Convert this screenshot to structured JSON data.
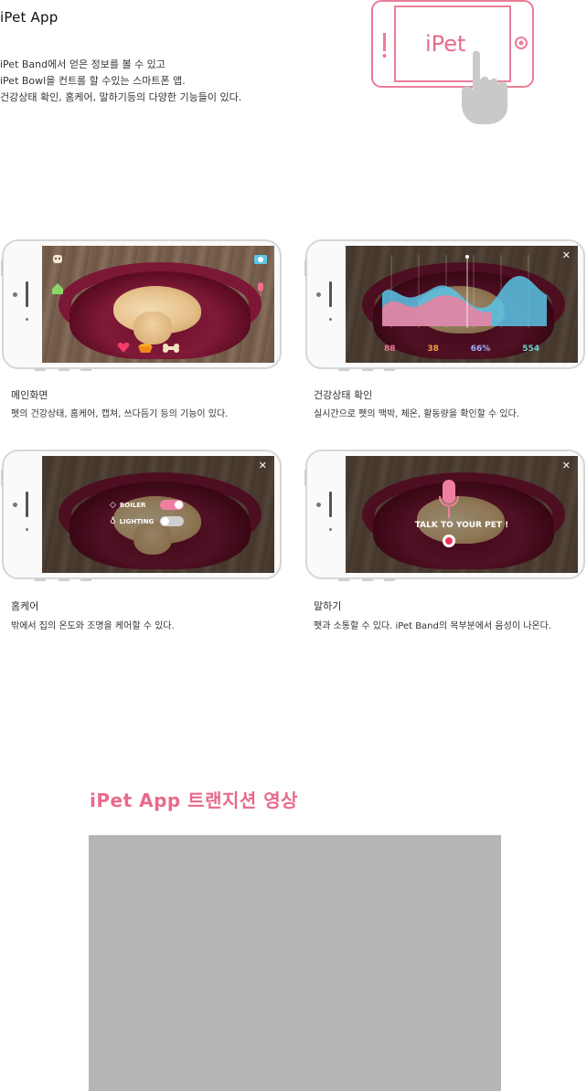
{
  "header": {
    "title": "iPet App",
    "intro_lines": [
      "iPet Band에서 얻은 정보를 볼 수 있고",
      "iPet Bowl을 컨트롤 할 수있는 스마트폰 앱.",
      "건강상태 확인, 홈케어, 말하기등의 다양한 기능들이 있다."
    ],
    "logo_text": "iPet"
  },
  "screens": [
    {
      "title": "메인화면",
      "desc": "펫의 건강상태, 홈케어, 캡쳐, 쓰다듬기 등의 기능이 있다."
    },
    {
      "title": "건강상태 확인",
      "desc": "실시간으로 펫의 맥박, 체온, 활동량을 확인할 수 있다."
    },
    {
      "title": "홈케어",
      "desc": "밖에서 집의 온도와 조명을 케어할 수 있다."
    },
    {
      "title": "말하기",
      "desc": "펫과 소통할 수 있다. iPet Band의 목부분에서 음성이 나온다."
    }
  ],
  "health": {
    "values": [
      "88",
      "38",
      "66%",
      "554"
    ],
    "value_colors": [
      "#f06f8d",
      "#f0a040",
      "#7fa0ff",
      "#67d2c7"
    ]
  },
  "homecare": {
    "boiler_label": "BOILER",
    "lighting_label": "LIGHTING",
    "boiler_on": true,
    "lighting_on": false
  },
  "talk": {
    "label": "TALK TO YOUR PET !"
  },
  "close_glyph": "✕",
  "transition": {
    "title": "iPet App 트랜지션 영상"
  },
  "colors": {
    "accent": "#e86a8a"
  }
}
